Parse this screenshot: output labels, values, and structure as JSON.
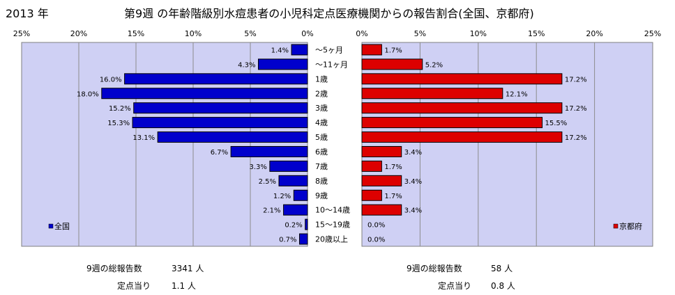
{
  "year_label": "2013 年",
  "title": "第9週 の年齢階級別水痘患者の小児科定点医療機関からの報告割合(全国、京都府)",
  "colors": {
    "all": "#0000cc",
    "kyoto": "#dd0000",
    "plot_bg": "#cfd0f4",
    "grid": "#8c8c8c"
  },
  "chart_data": {
    "type": "bar",
    "orientation": "horizontal-butterfly",
    "unit": "%",
    "categories": [
      "～5ヶ月",
      "～11ヶ月",
      "1歳",
      "2歳",
      "3歳",
      "4歳",
      "5歳",
      "6歳",
      "7歳",
      "8歳",
      "9歳",
      "10～14歳",
      "15～19歳",
      "20歳以上"
    ],
    "xlim": [
      0,
      25
    ],
    "ticks": [
      "0%",
      "5%",
      "10%",
      "15%",
      "20%",
      "25%"
    ],
    "grid": true,
    "series": [
      {
        "name": "全国",
        "side": "left",
        "legend_position": "bottom-left",
        "values": [
          1.4,
          4.3,
          16.0,
          18.0,
          15.2,
          15.3,
          13.1,
          6.7,
          3.3,
          2.5,
          1.2,
          2.1,
          0.2,
          0.7
        ],
        "labels": [
          "1.4%",
          "4.3%",
          "16.0%",
          "18.0%",
          "15.2%",
          "15.3%",
          "13.1%",
          "6.7%",
          "3.3%",
          "2.5%",
          "1.2%",
          "2.1%",
          "0.2%",
          "0.7%"
        ]
      },
      {
        "name": "京都府",
        "side": "right",
        "legend_position": "bottom-right",
        "values": [
          1.7,
          5.2,
          17.2,
          12.1,
          17.2,
          15.5,
          17.2,
          3.4,
          1.7,
          3.4,
          1.7,
          3.4,
          0.0,
          0.0
        ],
        "labels": [
          "1.7%",
          "5.2%",
          "17.2%",
          "12.1%",
          "17.2%",
          "15.5%",
          "17.2%",
          "3.4%",
          "1.7%",
          "3.4%",
          "1.7%",
          "3.4%",
          "0.0%",
          "0.0%"
        ]
      }
    ]
  },
  "summary": {
    "all": {
      "total_label": "9週の総報告数",
      "total_value": "3341 人",
      "per_label": "定点当り",
      "per_value": "1.1 人"
    },
    "kyoto": {
      "total_label": "9週の総報告数",
      "total_value": "58 人",
      "per_label": "定点当り",
      "per_value": "0.8 人"
    }
  }
}
